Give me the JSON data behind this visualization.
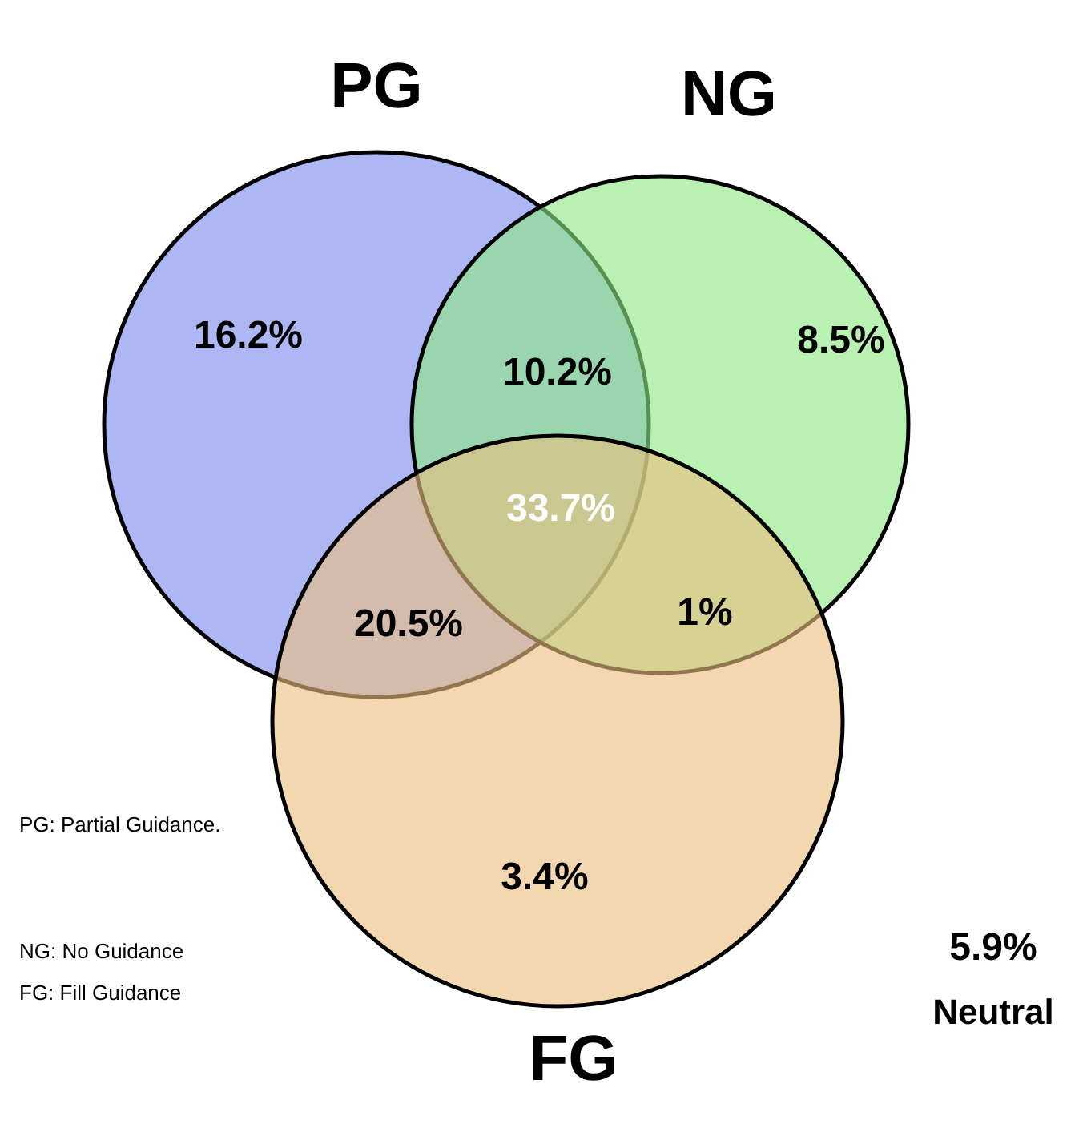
{
  "chart_data": {
    "type": "other",
    "categories": [
      null,
      null,
      null,
      null,
      null,
      null,
      null,
      null
    ],
    "values": [
      16.2,
      10.2,
      8.5,
      33.7,
      20.5,
      1,
      3.4,
      5.9
    ],
    "value_labels": [
      "16.2%",
      "10.2%",
      "8.5%",
      "33.7%",
      "20.5%",
      "1%",
      "3.4%",
      "5.9%"
    ],
    "annotations": [
      "PG",
      "NG",
      "FG",
      "Neutral",
      "PG:  Partial Guidance.",
      "NG:  No Guidance",
      "FG:  Fill Guidance"
    ]
  }
}
